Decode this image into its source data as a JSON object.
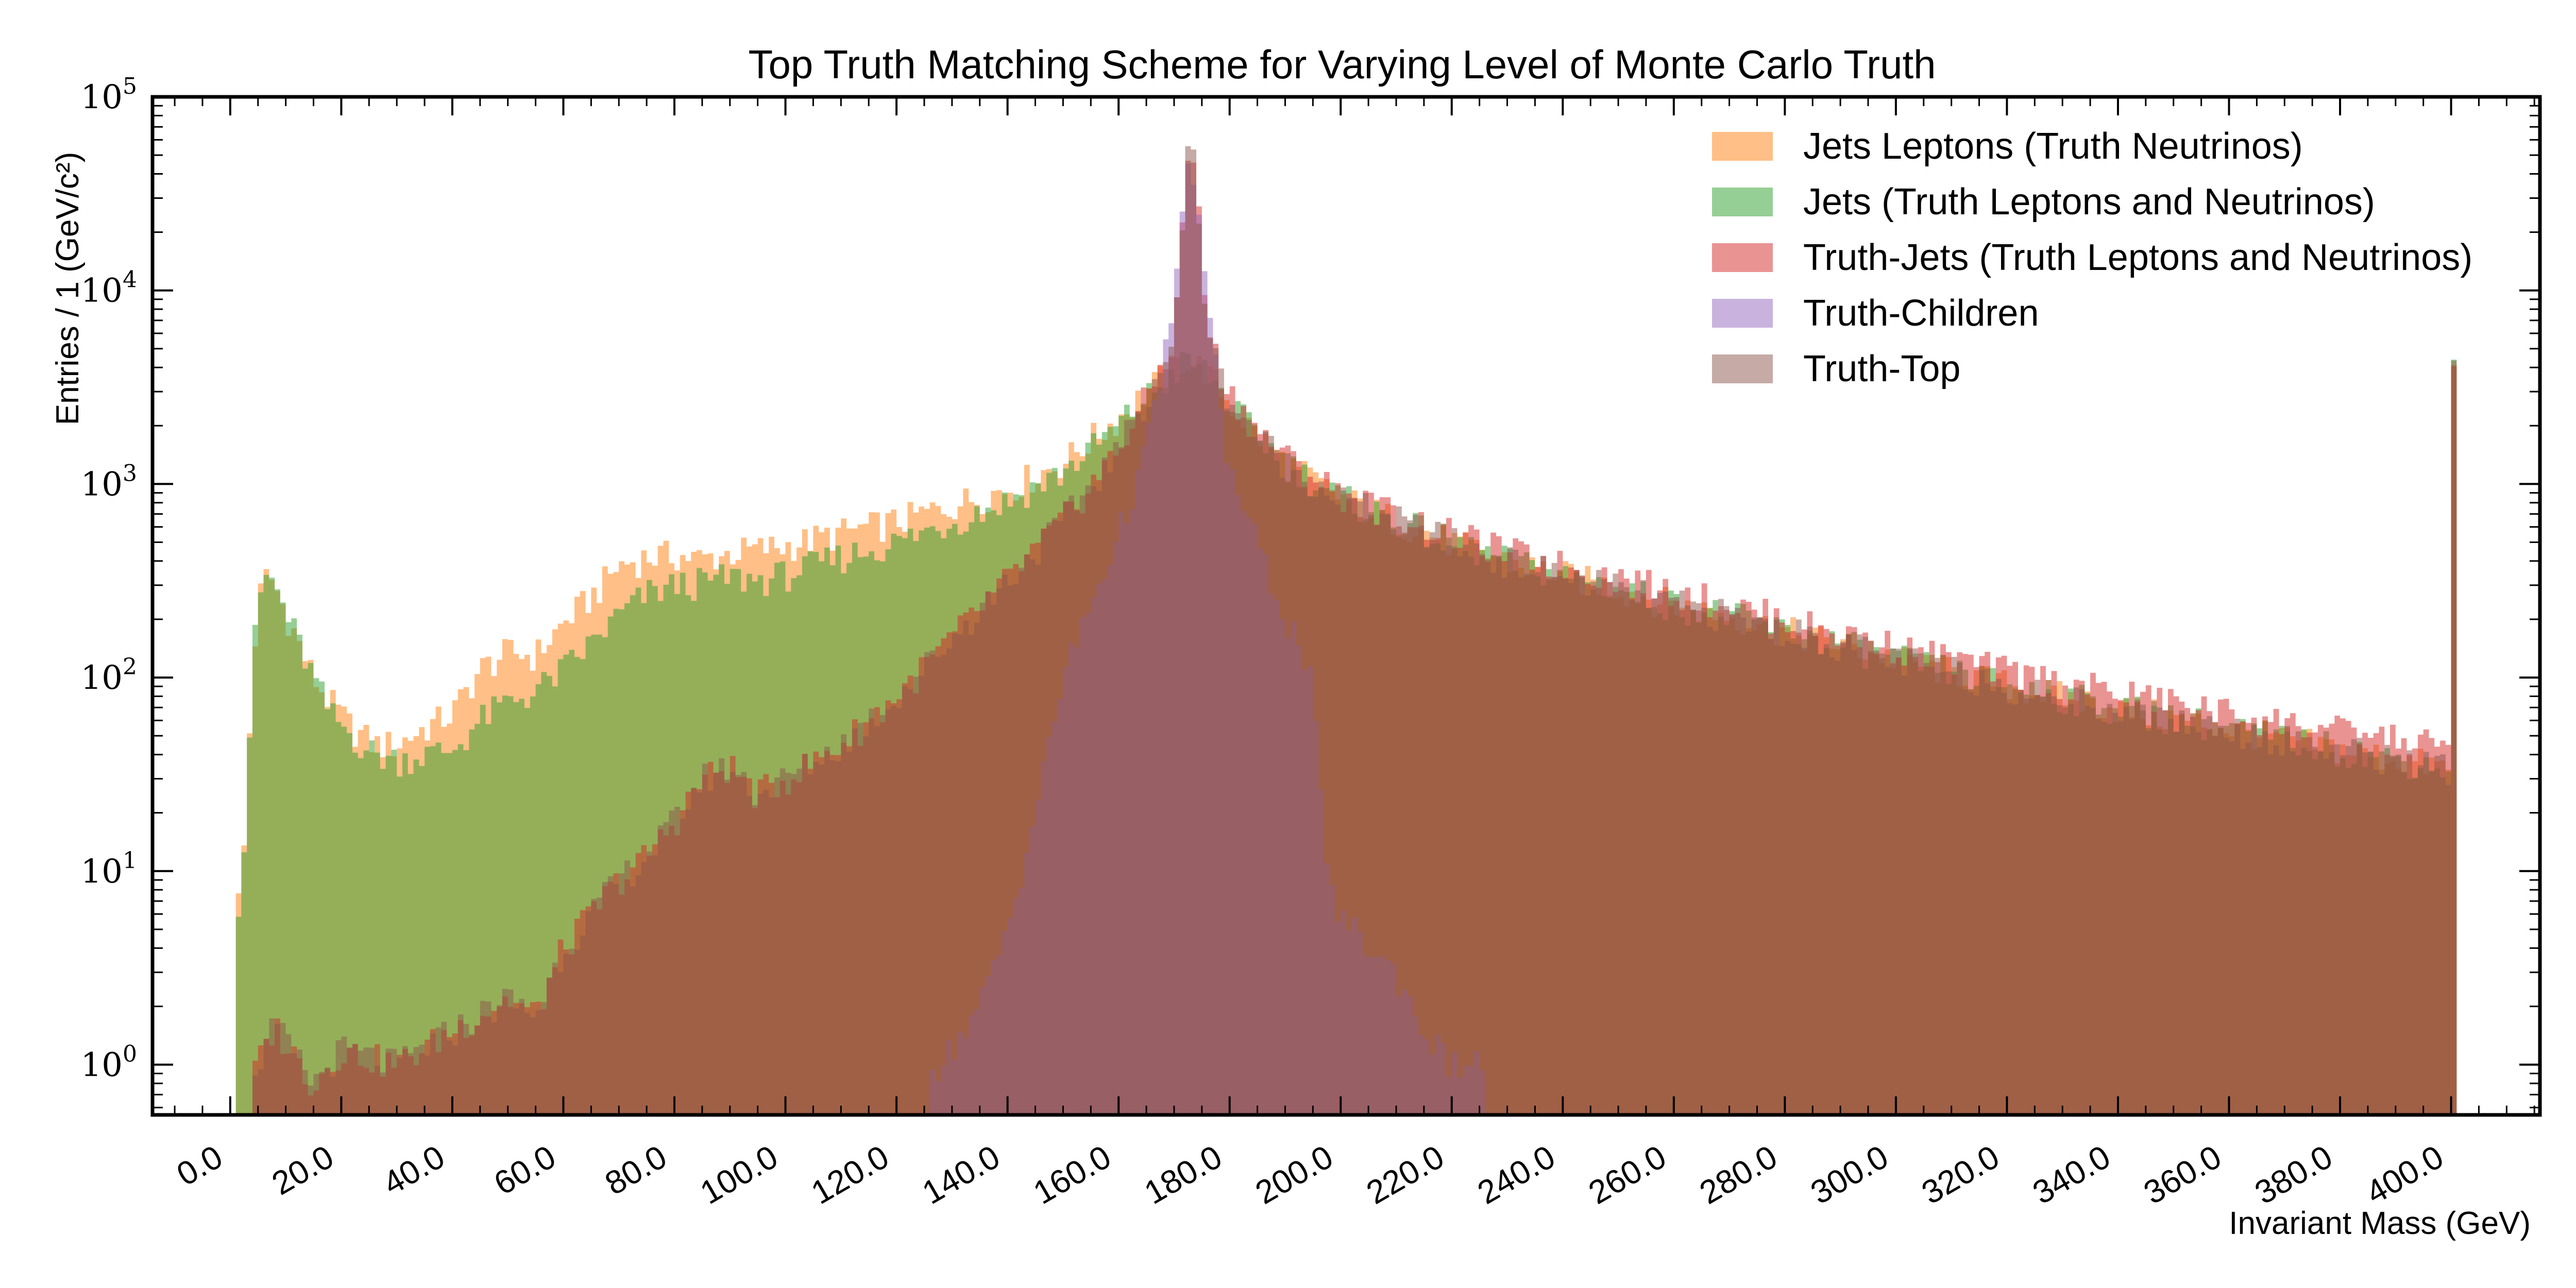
{
  "chart_data": {
    "type": "histogram",
    "title": "Top Truth Matching Scheme for Varying Level of Monte Carlo Truth",
    "xlabel": "Invariant Mass (GeV)",
    "ylabel": "Entries / 1 (GeV/c²)",
    "xscale": "linear",
    "yscale": "log",
    "xlim": [
      -14,
      416
    ],
    "ylim": [
      0.55,
      100000
    ],
    "x_ticks": [
      0,
      20,
      40,
      60,
      80,
      100,
      120,
      140,
      160,
      180,
      200,
      220,
      240,
      260,
      280,
      300,
      320,
      340,
      360,
      380,
      400
    ],
    "x_tick_labels": [
      "0.0",
      "20.0",
      "40.0",
      "60.0",
      "80.0",
      "100.0",
      "120.0",
      "140.0",
      "160.0",
      "180.0",
      "200.0",
      "220.0",
      "240.0",
      "260.0",
      "280.0",
      "300.0",
      "320.0",
      "340.0",
      "360.0",
      "380.0",
      "400.0"
    ],
    "y_ticks": [
      1,
      10,
      100,
      1000,
      10000,
      100000
    ],
    "y_tick_bases": [
      "10",
      "10",
      "10",
      "10",
      "10",
      "10"
    ],
    "y_tick_exponents": [
      "0",
      "1",
      "2",
      "3",
      "4",
      "5"
    ],
    "bin_width": 1,
    "legend_position": "top-right",
    "grid": false,
    "series": [
      {
        "name": "Jets Leptons (Truth Neutrinos)",
        "color": "#ff7f0e",
        "alpha": 0.5,
        "points": [
          [
            0,
            0
          ],
          [
            1,
            0
          ],
          [
            2,
            7
          ],
          [
            3,
            25
          ],
          [
            4,
            110
          ],
          [
            5,
            230
          ],
          [
            6,
            320
          ],
          [
            7,
            340
          ],
          [
            8,
            300
          ],
          [
            10,
            220
          ],
          [
            12,
            160
          ],
          [
            15,
            100
          ],
          [
            18,
            75
          ],
          [
            22,
            55
          ],
          [
            26,
            45
          ],
          [
            30,
            45
          ],
          [
            35,
            55
          ],
          [
            40,
            65
          ],
          [
            45,
            110
          ],
          [
            50,
            135
          ],
          [
            55,
            130
          ],
          [
            60,
            190
          ],
          [
            65,
            260
          ],
          [
            70,
            380
          ],
          [
            75,
            420
          ],
          [
            80,
            430
          ],
          [
            85,
            410
          ],
          [
            90,
            440
          ],
          [
            95,
            460
          ],
          [
            100,
            480
          ],
          [
            110,
            560
          ],
          [
            120,
            640
          ],
          [
            130,
            780
          ],
          [
            140,
            950
          ],
          [
            150,
            1300
          ],
          [
            160,
            2200
          ],
          [
            165,
            3000
          ],
          [
            170,
            4000
          ],
          [
            172,
            4500
          ],
          [
            175,
            4000
          ],
          [
            178,
            3200
          ],
          [
            180,
            2600
          ],
          [
            185,
            1800
          ],
          [
            190,
            1300
          ],
          [
            195,
            1050
          ],
          [
            200,
            850
          ],
          [
            210,
            650
          ],
          [
            220,
            500
          ],
          [
            230,
            400
          ],
          [
            240,
            340
          ],
          [
            250,
            290
          ],
          [
            260,
            240
          ],
          [
            270,
            210
          ],
          [
            280,
            175
          ],
          [
            290,
            150
          ],
          [
            300,
            125
          ],
          [
            310,
            108
          ],
          [
            320,
            92
          ],
          [
            330,
            80
          ],
          [
            340,
            70
          ],
          [
            350,
            62
          ],
          [
            360,
            55
          ],
          [
            370,
            48
          ],
          [
            380,
            43
          ],
          [
            390,
            38
          ],
          [
            400,
            34
          ],
          [
            400.5,
            3800
          ]
        ]
      },
      {
        "name": "Jets (Truth Leptons and Neutrinos)",
        "color": "#2ca02c",
        "alpha": 0.5,
        "points": [
          [
            0,
            0
          ],
          [
            1,
            0
          ],
          [
            2,
            7
          ],
          [
            3,
            25
          ],
          [
            4,
            110
          ],
          [
            5,
            230
          ],
          [
            6,
            320
          ],
          [
            7,
            340
          ],
          [
            8,
            300
          ],
          [
            10,
            220
          ],
          [
            12,
            160
          ],
          [
            15,
            100
          ],
          [
            18,
            65
          ],
          [
            22,
            50
          ],
          [
            26,
            40
          ],
          [
            30,
            38
          ],
          [
            35,
            40
          ],
          [
            40,
            42
          ],
          [
            45,
            60
          ],
          [
            50,
            75
          ],
          [
            55,
            85
          ],
          [
            60,
            110
          ],
          [
            65,
            150
          ],
          [
            70,
            210
          ],
          [
            75,
            270
          ],
          [
            80,
            300
          ],
          [
            85,
            310
          ],
          [
            90,
            330
          ],
          [
            95,
            320
          ],
          [
            100,
            340
          ],
          [
            110,
            420
          ],
          [
            120,
            500
          ],
          [
            130,
            640
          ],
          [
            140,
            820
          ],
          [
            150,
            1150
          ],
          [
            160,
            2000
          ],
          [
            165,
            2800
          ],
          [
            170,
            3700
          ],
          [
            172,
            4300
          ],
          [
            175,
            4000
          ],
          [
            178,
            3200
          ],
          [
            180,
            2600
          ],
          [
            185,
            1800
          ],
          [
            190,
            1300
          ],
          [
            195,
            1050
          ],
          [
            200,
            850
          ],
          [
            210,
            650
          ],
          [
            220,
            500
          ],
          [
            230,
            400
          ],
          [
            240,
            340
          ],
          [
            250,
            290
          ],
          [
            260,
            240
          ],
          [
            270,
            210
          ],
          [
            280,
            175
          ],
          [
            290,
            150
          ],
          [
            300,
            125
          ],
          [
            310,
            108
          ],
          [
            320,
            92
          ],
          [
            330,
            80
          ],
          [
            340,
            70
          ],
          [
            350,
            62
          ],
          [
            360,
            55
          ],
          [
            370,
            48
          ],
          [
            380,
            43
          ],
          [
            390,
            38
          ],
          [
            400,
            34
          ],
          [
            400.5,
            3800
          ]
        ]
      },
      {
        "name": "Truth-Jets (Truth Leptons and Neutrinos)",
        "color": "#d62728",
        "alpha": 0.5,
        "points": [
          [
            0,
            0
          ],
          [
            4,
            0
          ],
          [
            5,
            1
          ],
          [
            8,
            1.6
          ],
          [
            15,
            0.8
          ],
          [
            20,
            1.2
          ],
          [
            30,
            1
          ],
          [
            40,
            1.5
          ],
          [
            50,
            2.2
          ],
          [
            55,
            1.8
          ],
          [
            60,
            4
          ],
          [
            65,
            6
          ],
          [
            70,
            9
          ],
          [
            75,
            12
          ],
          [
            80,
            18
          ],
          [
            85,
            30
          ],
          [
            90,
            35
          ],
          [
            95,
            25
          ],
          [
            100,
            30
          ],
          [
            110,
            45
          ],
          [
            120,
            80
          ],
          [
            130,
            160
          ],
          [
            140,
            320
          ],
          [
            150,
            650
          ],
          [
            160,
            1500
          ],
          [
            165,
            2800
          ],
          [
            170,
            5500
          ],
          [
            171,
            12000
          ],
          [
            172,
            40000
          ],
          [
            173,
            60000
          ],
          [
            174,
            40000
          ],
          [
            175,
            14000
          ],
          [
            176,
            7000
          ],
          [
            178,
            4000
          ],
          [
            180,
            3000
          ],
          [
            185,
            1900
          ],
          [
            190,
            1400
          ],
          [
            195,
            1100
          ],
          [
            200,
            900
          ],
          [
            210,
            700
          ],
          [
            220,
            550
          ],
          [
            230,
            450
          ],
          [
            240,
            380
          ],
          [
            250,
            330
          ],
          [
            260,
            280
          ],
          [
            270,
            240
          ],
          [
            280,
            200
          ],
          [
            290,
            170
          ],
          [
            300,
            145
          ],
          [
            310,
            125
          ],
          [
            320,
            108
          ],
          [
            330,
            95
          ],
          [
            340,
            84
          ],
          [
            350,
            75
          ],
          [
            360,
            66
          ],
          [
            370,
            59
          ],
          [
            380,
            53
          ],
          [
            390,
            48
          ],
          [
            400,
            44
          ],
          [
            400.5,
            5000
          ]
        ]
      },
      {
        "name": "Truth-Children",
        "color": "#9467bd",
        "alpha": 0.5,
        "points": [
          [
            125,
            0
          ],
          [
            128,
            1
          ],
          [
            135,
            2
          ],
          [
            140,
            5
          ],
          [
            145,
            20
          ],
          [
            150,
            100
          ],
          [
            155,
            240
          ],
          [
            160,
            550
          ],
          [
            165,
            1500
          ],
          [
            168,
            4000
          ],
          [
            170,
            9000
          ],
          [
            171,
            16000
          ],
          [
            172,
            30000
          ],
          [
            173,
            60000
          ],
          [
            174,
            30000
          ],
          [
            175,
            16000
          ],
          [
            176,
            9000
          ],
          [
            178,
            3000
          ],
          [
            180,
            1200
          ],
          [
            185,
            480
          ],
          [
            190,
            210
          ],
          [
            194,
            120
          ],
          [
            196,
            50
          ],
          [
            197,
            10
          ],
          [
            200,
            6
          ],
          [
            205,
            4
          ],
          [
            210,
            3
          ],
          [
            215,
            1.5
          ],
          [
            220,
            1
          ],
          [
            225,
            1
          ],
          [
            227,
            0
          ]
        ]
      },
      {
        "name": "Truth-Top",
        "color": "#8c564b",
        "alpha": 0.5,
        "points": [
          [
            0,
            0
          ],
          [
            4,
            0
          ],
          [
            5,
            1
          ],
          [
            8,
            1.6
          ],
          [
            15,
            0.8
          ],
          [
            20,
            1.2
          ],
          [
            30,
            1
          ],
          [
            40,
            1.5
          ],
          [
            50,
            2.2
          ],
          [
            55,
            1.8
          ],
          [
            60,
            4
          ],
          [
            65,
            6
          ],
          [
            70,
            9
          ],
          [
            75,
            12
          ],
          [
            80,
            18
          ],
          [
            85,
            30
          ],
          [
            90,
            35
          ],
          [
            95,
            25
          ],
          [
            100,
            30
          ],
          [
            110,
            45
          ],
          [
            120,
            80
          ],
          [
            130,
            160
          ],
          [
            140,
            320
          ],
          [
            150,
            650
          ],
          [
            160,
            1500
          ],
          [
            165,
            2800
          ],
          [
            170,
            5500
          ],
          [
            171,
            12000
          ],
          [
            172,
            40000
          ],
          [
            173,
            60000
          ],
          [
            174,
            40000
          ],
          [
            175,
            14000
          ],
          [
            176,
            7000
          ],
          [
            178,
            3800
          ],
          [
            180,
            2800
          ],
          [
            185,
            1800
          ],
          [
            190,
            1300
          ],
          [
            195,
            1050
          ],
          [
            200,
            850
          ],
          [
            210,
            650
          ],
          [
            220,
            500
          ],
          [
            230,
            400
          ],
          [
            240,
            340
          ],
          [
            250,
            290
          ],
          [
            260,
            240
          ],
          [
            270,
            210
          ],
          [
            280,
            175
          ],
          [
            290,
            150
          ],
          [
            300,
            125
          ],
          [
            310,
            108
          ],
          [
            320,
            92
          ],
          [
            330,
            80
          ],
          [
            340,
            70
          ],
          [
            350,
            62
          ],
          [
            360,
            55
          ],
          [
            370,
            48
          ],
          [
            380,
            43
          ],
          [
            390,
            38
          ],
          [
            400,
            34
          ],
          [
            400.5,
            3800
          ]
        ]
      }
    ]
  }
}
